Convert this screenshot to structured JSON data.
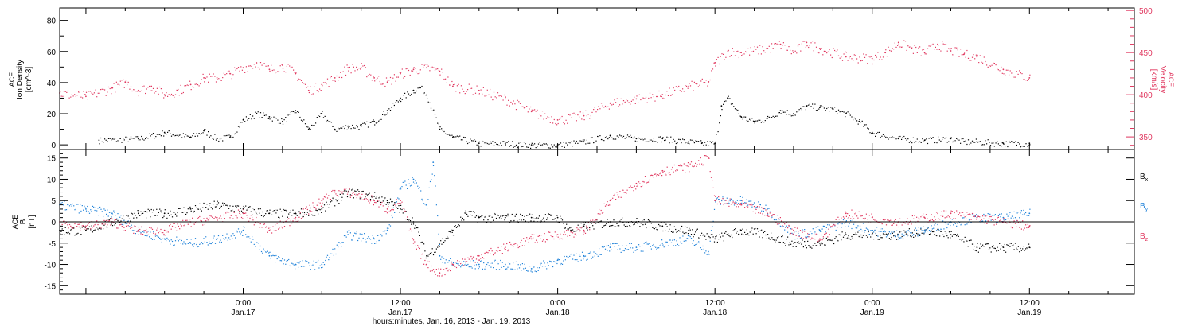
{
  "colors": {
    "density": "#000000",
    "velocity": "#e0365e",
    "bx": "#000000",
    "by": "#1f82d9",
    "bz": "#e0365e",
    "axis": "#000000"
  },
  "time_axis": {
    "ticks": [
      {
        "hour": 24,
        "time": "0:00",
        "date": "Jan.17"
      },
      {
        "hour": 36,
        "time": "12:00",
        "date": "Jan.17"
      },
      {
        "hour": 48,
        "time": "0:00",
        "date": "Jan.18"
      },
      {
        "hour": 60,
        "time": "12:00",
        "date": "Jan.18"
      },
      {
        "hour": 72,
        "time": "0:00",
        "date": "Jan.19"
      },
      {
        "hour": 84,
        "time": "12:00",
        "date": "Jan.19"
      }
    ],
    "xlabel": "hours:minutes, Jan. 16, 2013 - Jan. 19, 2013"
  },
  "panel1": {
    "left_label": [
      "ACE",
      "Ion Density",
      "[cm^-3]"
    ],
    "right_label": [
      "ACE",
      "Velocity",
      "[km/s]"
    ],
    "yticks_left": [
      "0",
      "20",
      "40",
      "60",
      "80"
    ],
    "yticks_right": [
      "350",
      "400",
      "450",
      "500"
    ]
  },
  "panel2": {
    "left_label": [
      "ACE",
      "B",
      "[nT]"
    ],
    "yticks": [
      "-15",
      "-10",
      "-5",
      "0",
      "5",
      "10",
      "15"
    ],
    "legend": [
      {
        "base": "B",
        "sub": "x"
      },
      {
        "base": "B",
        "sub": "y"
      },
      {
        "base": "B",
        "sub": "z"
      }
    ]
  },
  "chart_data": [
    {
      "type": "scatter",
      "x_unit": "hours from Jan. 16, 2013 00:00",
      "xlim": [
        10,
        92
      ],
      "series": [
        {
          "quantity": "Ion Density",
          "unit": "cm^-3",
          "axis": "left",
          "ylim": [
            -3,
            88
          ],
          "x": [
            13,
            16,
            18,
            20,
            21,
            22,
            23,
            24,
            25,
            26,
            27,
            28,
            29,
            30,
            31,
            32,
            33,
            34,
            35,
            36,
            37,
            37.5,
            38,
            39,
            40,
            42,
            44,
            46,
            48,
            50,
            52,
            54,
            56,
            58,
            59,
            60,
            60.5,
            61,
            62,
            63,
            64,
            65,
            66,
            67,
            68,
            69,
            70,
            71,
            72,
            74,
            76,
            78,
            79,
            80,
            82,
            84
          ],
          "y": [
            3,
            4,
            8,
            5,
            9,
            4,
            5,
            16,
            20,
            18,
            15,
            22,
            10,
            20,
            10,
            12,
            12,
            15,
            22,
            30,
            35,
            37,
            32,
            10,
            5,
            1,
            1,
            0,
            0,
            2,
            6,
            4,
            4,
            2,
            1,
            1,
            25,
            30,
            18,
            15,
            17,
            22,
            20,
            25,
            24,
            23,
            20,
            15,
            8,
            4,
            3,
            4,
            2,
            2,
            1,
            1
          ]
        },
        {
          "quantity": "Velocity",
          "unit": "km/s",
          "axis": "right",
          "ylim": [
            335,
            503
          ],
          "x": [
            10,
            12,
            14,
            15,
            16,
            17,
            18,
            19,
            20,
            21,
            22,
            23,
            24,
            25,
            26,
            27,
            28,
            29,
            30,
            31,
            32,
            33,
            34,
            35,
            36,
            37,
            38,
            39,
            40,
            42,
            44,
            46,
            48,
            50,
            52,
            54,
            56,
            58,
            59.5,
            60,
            61,
            62,
            64,
            65,
            66,
            67,
            68,
            70,
            72,
            73,
            74,
            75,
            76,
            77,
            78,
            79,
            80,
            82,
            84
          ],
          "y": [
            402,
            398,
            408,
            415,
            405,
            410,
            400,
            405,
            412,
            420,
            420,
            425,
            432,
            438,
            430,
            435,
            425,
            405,
            412,
            420,
            432,
            432,
            420,
            415,
            425,
            430,
            432,
            428,
            410,
            405,
            395,
            380,
            370,
            375,
            390,
            395,
            400,
            410,
            415,
            438,
            452,
            450,
            455,
            460,
            450,
            462,
            455,
            445,
            443,
            450,
            462,
            455,
            450,
            460,
            452,
            448,
            445,
            430,
            420
          ]
        }
      ]
    },
    {
      "type": "scatter",
      "x_unit": "hours from Jan. 16, 2013 00:00",
      "ylabel": "B [nT]",
      "ylim": [
        -17,
        17
      ],
      "series": [
        {
          "name": "Bx",
          "x": [
            10,
            12,
            14,
            16,
            18,
            20,
            22,
            24,
            26,
            28,
            30,
            32,
            34,
            35,
            36,
            37,
            38,
            39,
            40,
            41,
            42,
            44,
            46,
            48,
            49,
            50,
            52,
            54,
            56,
            58,
            60,
            62,
            64,
            66,
            68,
            70,
            72,
            74,
            76,
            78,
            80,
            82,
            84
          ],
          "y": [
            -2,
            -2,
            0,
            2,
            2,
            3,
            4,
            3,
            2,
            2,
            3,
            7,
            6,
            5,
            3,
            0,
            -8,
            -5,
            -2,
            2,
            1,
            1,
            1,
            1,
            -2,
            -1,
            0,
            0,
            -1,
            -2,
            -4,
            -2,
            -3,
            -5,
            -5,
            -3,
            -3,
            -3,
            -2,
            -3,
            -6,
            -6,
            -6
          ]
        },
        {
          "name": "By",
          "x": [
            10,
            12,
            14,
            16,
            18,
            20,
            22,
            24,
            26,
            28,
            30,
            32,
            34,
            35,
            36,
            37,
            38,
            38.5,
            39,
            40,
            42,
            44,
            46,
            48,
            50,
            52,
            54,
            56,
            58,
            59.5,
            60,
            62,
            64,
            66,
            68,
            70,
            72,
            74,
            76,
            78,
            80,
            82,
            84
          ],
          "y": [
            4,
            3,
            2,
            -2,
            -4,
            -5,
            -4,
            -2,
            -8,
            -10,
            -10,
            -3,
            -4,
            -2,
            8,
            10,
            4,
            14,
            -8,
            -10,
            -10,
            -10,
            -11,
            -9,
            -8,
            -6,
            -6,
            -5,
            -4,
            -7,
            5,
            5,
            3,
            -3,
            -2,
            0,
            -2,
            -3,
            -2,
            0,
            1,
            1,
            2
          ]
        },
        {
          "name": "Bz",
          "x": [
            10,
            12,
            14,
            16,
            18,
            20,
            22,
            24,
            26,
            28,
            30,
            31,
            32,
            34,
            35,
            36,
            37,
            38,
            39,
            40,
            42,
            44,
            46,
            48,
            50,
            52,
            54,
            56,
            58,
            59.5,
            60,
            62,
            64,
            66,
            68,
            70,
            72,
            74,
            76,
            78,
            80,
            82,
            84
          ],
          "y": [
            0,
            -1,
            0,
            -2,
            -2,
            0,
            1,
            2,
            -2,
            1,
            5,
            7,
            7,
            5,
            3,
            5,
            -5,
            -10,
            -12,
            -10,
            -8,
            -6,
            -4,
            -3,
            -2,
            5,
            9,
            12,
            13,
            15,
            5,
            4,
            2,
            -2,
            -4,
            2,
            1,
            0,
            1,
            2,
            1,
            0,
            -1
          ]
        }
      ]
    }
  ]
}
